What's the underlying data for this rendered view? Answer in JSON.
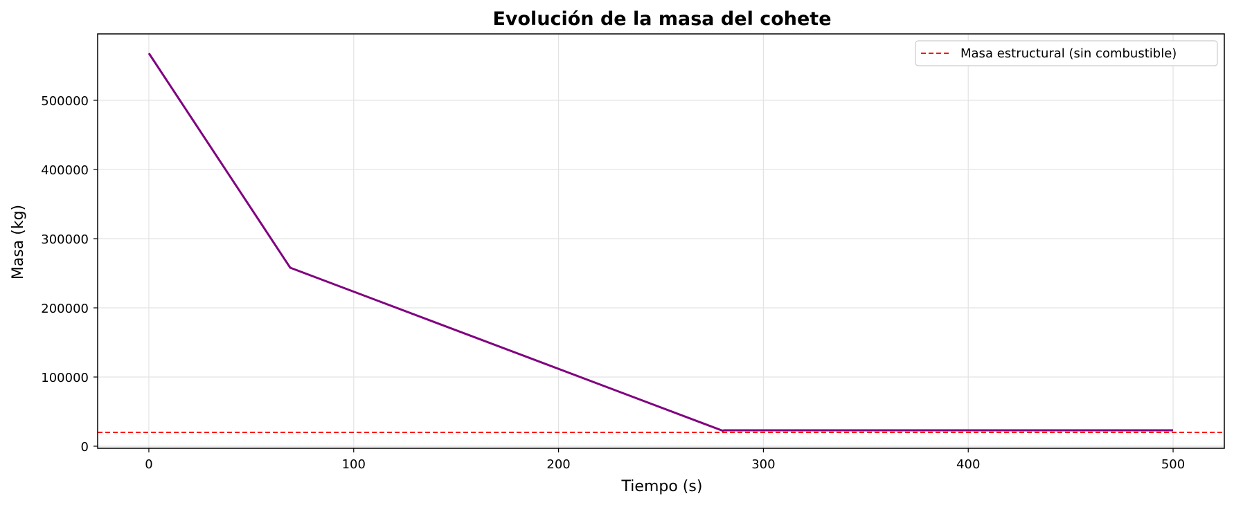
{
  "chart_data": {
    "type": "line",
    "title": "Evolución de la masa del cohete",
    "xlabel": "Tiempo (s)",
    "ylabel": "Masa (kg)",
    "xlim": [
      -25,
      525
    ],
    "ylim": [
      -3000,
      596000
    ],
    "xticks": [
      0,
      100,
      200,
      300,
      400,
      500
    ],
    "yticks": [
      0,
      100000,
      200000,
      300000,
      400000,
      500000
    ],
    "grid": true,
    "legend_position": "top-right",
    "series": [
      {
        "color": "#800080",
        "style": "solid",
        "x": [
          0,
          69,
          280,
          281,
          500
        ],
        "y": [
          568000,
          258000,
          22500,
          23000,
          23000
        ]
      }
    ],
    "hlines": [
      {
        "name": "Masa estructural (sin combustible)",
        "y": 20000,
        "color": "#ff0000",
        "style": "dashed"
      }
    ]
  }
}
